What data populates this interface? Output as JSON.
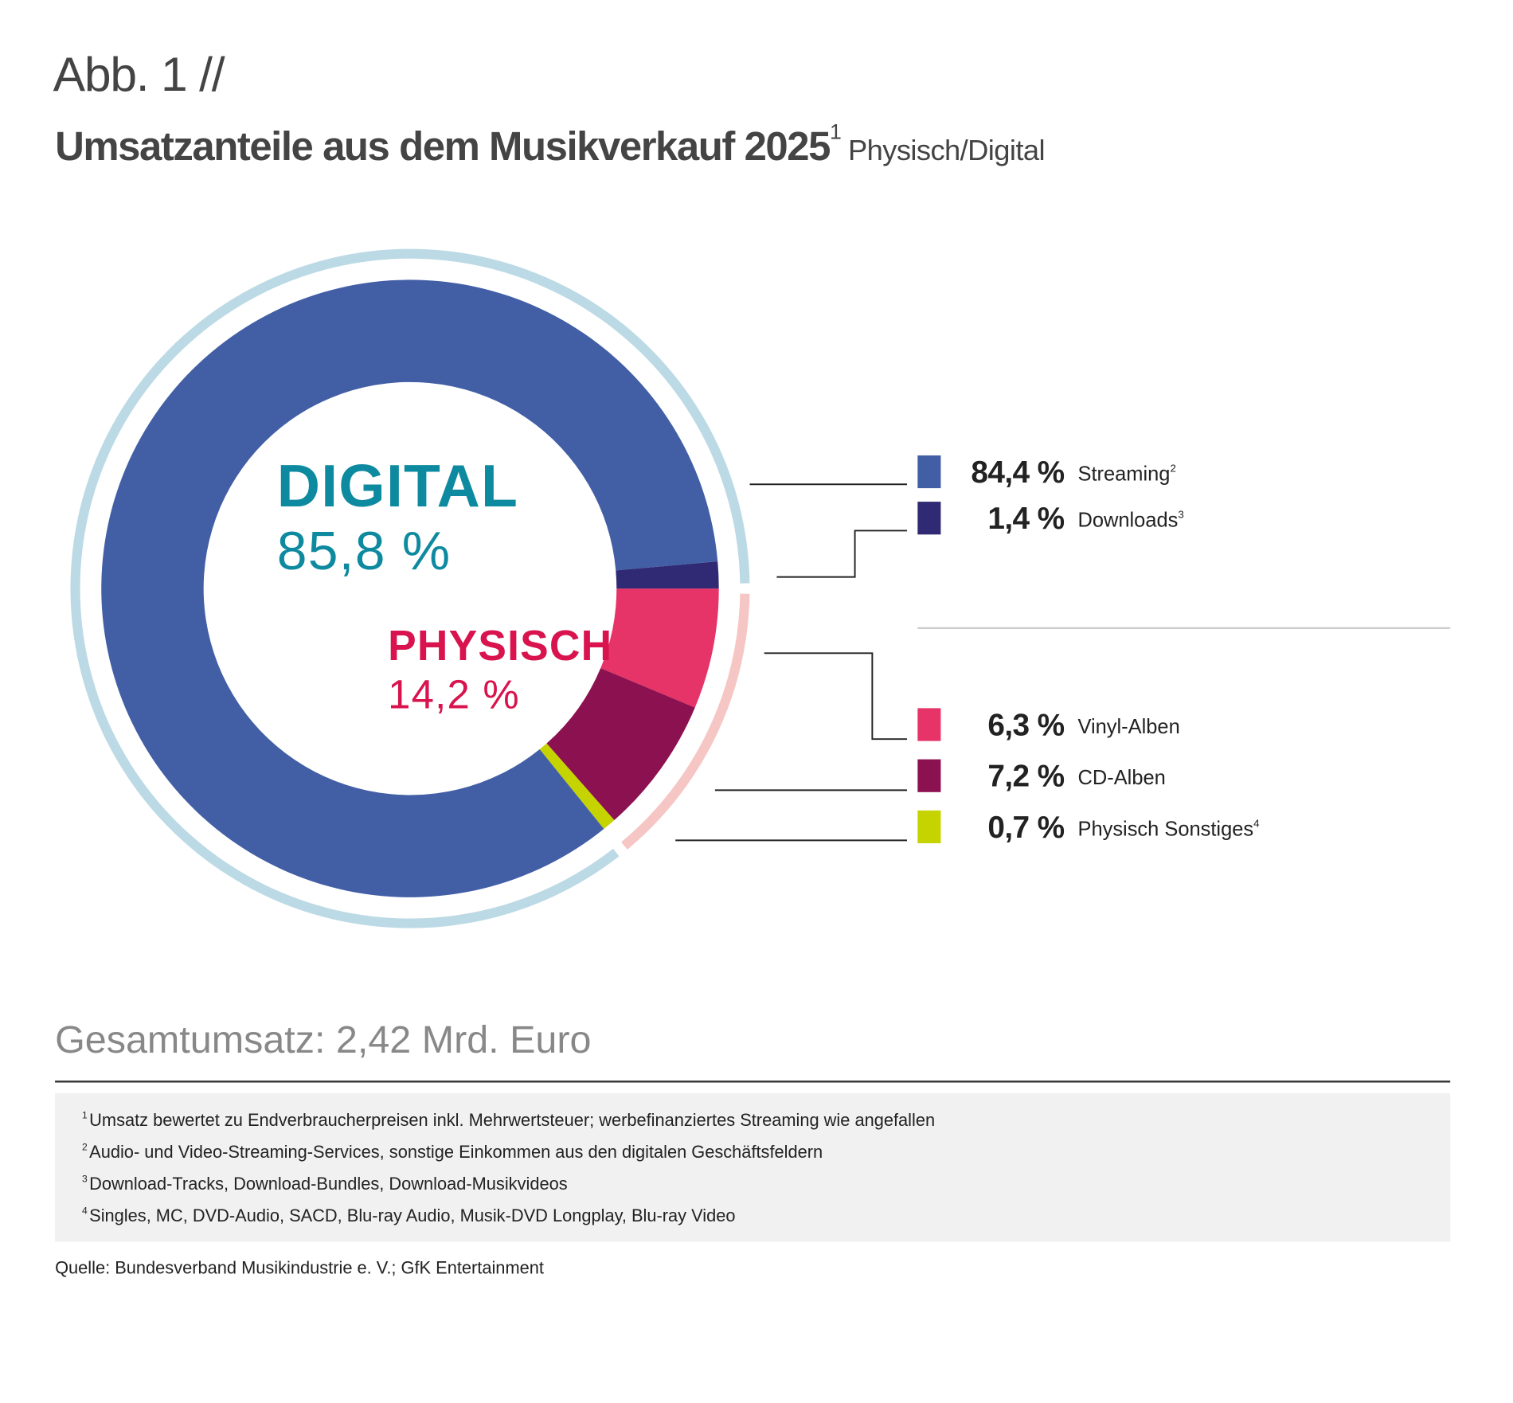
{
  "figure_label": "Abb. 1 //",
  "chart_data": {
    "type": "pie",
    "title": "Umsatzanteile aus dem Musikverkauf 2025",
    "title_footnote": "1",
    "subtitle": "Physisch/Digital",
    "unit": "%",
    "groups": [
      {
        "name": "DIGITAL",
        "value_label": "85,8 %",
        "value": 85.8,
        "color": "#0e8aa0",
        "ring_color": "#bcdae5"
      },
      {
        "name": "PHYSISCH",
        "value_label": "14,2 %",
        "value": 14.2,
        "color": "#d8134d",
        "ring_color": "#f6c6c4"
      }
    ],
    "slices": [
      {
        "label": "Streaming",
        "footnote": "2",
        "value": 84.4,
        "value_label": "84,4 %",
        "group": "DIGITAL",
        "color": "#425fa6"
      },
      {
        "label": "Downloads",
        "footnote": "3",
        "value": 1.4,
        "value_label": "1,4 %",
        "group": "DIGITAL",
        "color": "#2f2a73"
      },
      {
        "label": "Vinyl-Alben",
        "footnote": "",
        "value": 6.3,
        "value_label": "6,3 %",
        "group": "PHYSISCH",
        "color": "#e63368"
      },
      {
        "label": "CD-Alben",
        "footnote": "",
        "value": 7.2,
        "value_label": "7,2 %",
        "group": "PHYSISCH",
        "color": "#8c1150"
      },
      {
        "label": "Physisch Sonstiges",
        "footnote": "4",
        "value": 0.7,
        "value_label": "0,7 %",
        "group": "PHYSISCH",
        "color": "#c5d300"
      }
    ],
    "legend_placement": "right"
  },
  "total": "Gesamtumsatz: 2,42 Mrd. Euro",
  "footnotes": [
    {
      "num": "1",
      "text": "Umsatz bewertet zu Endverbraucherpreisen inkl. Mehrwertsteuer; werbefinanziertes Streaming wie angefallen"
    },
    {
      "num": "2",
      "text": "Audio- und Video-Streaming-Services, sonstige Einkommen aus den digitalen Geschäftsfeldern"
    },
    {
      "num": "3",
      "text": "Download-Tracks, Download-Bundles, Download-Musikvideos"
    },
    {
      "num": "4",
      "text": "Singles, MC, DVD-Audio, SACD, Blu-ray Audio, Musik-DVD Longplay, Blu-ray Video"
    }
  ],
  "source": "Quelle: Bundesverband Musikindustrie e. V.; GfK Entertainment"
}
